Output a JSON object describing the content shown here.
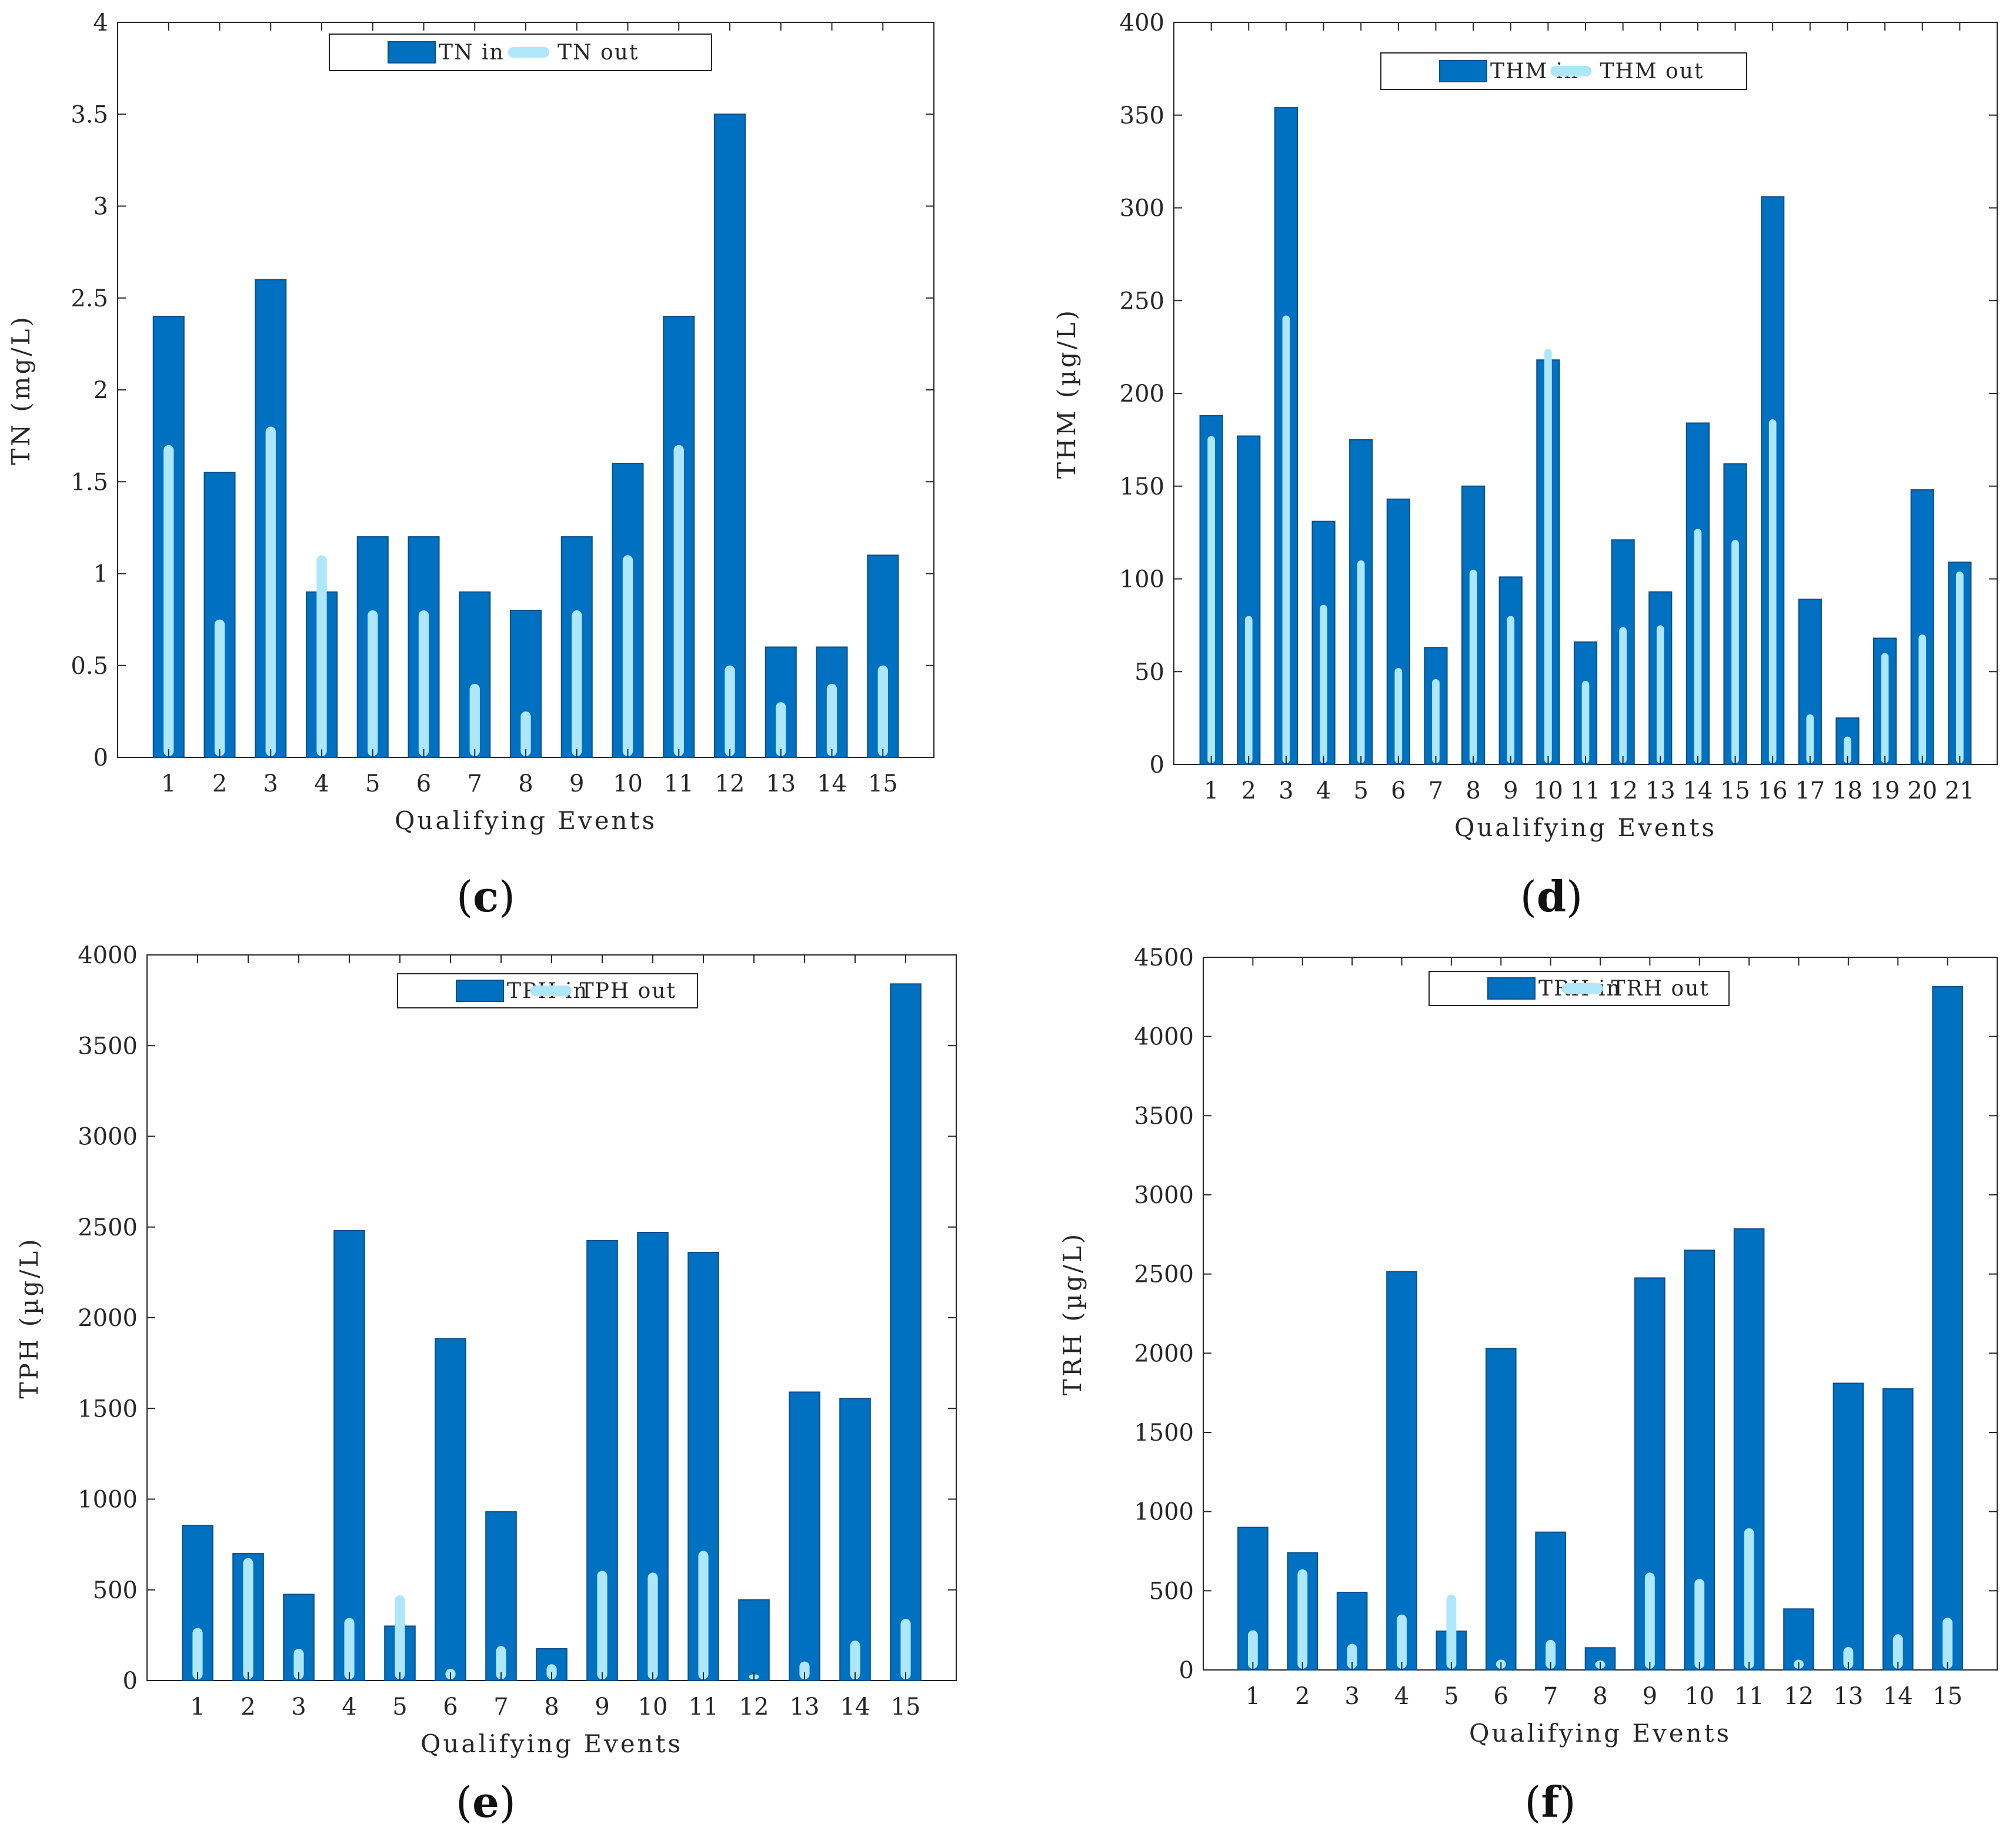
{
  "colors": {
    "in": "#0070c0",
    "in_edge": "#0b4f8a",
    "out": "#aee7fa",
    "axis": "#262626"
  },
  "chart_data": [
    {
      "type": "bar",
      "panel": "c",
      "panel_label": "c",
      "xlabel": "Qualifying Events",
      "ylabel": "TN (mg/L)",
      "ylim": [
        0,
        4
      ],
      "yticks": [
        0,
        0.5,
        1,
        1.5,
        2,
        2.5,
        3,
        3.5,
        4
      ],
      "ytick_labels": [
        "0",
        "0.5",
        "1",
        "1.5",
        "2",
        "2.5",
        "3",
        "3.5",
        "4"
      ],
      "categories": [
        "1",
        "2",
        "3",
        "4",
        "5",
        "6",
        "7",
        "8",
        "9",
        "10",
        "11",
        "12",
        "13",
        "14",
        "15"
      ],
      "legend_position": "top-center",
      "series": [
        {
          "name": "TN in",
          "values": [
            2.4,
            1.55,
            2.6,
            0.9,
            1.2,
            1.2,
            0.9,
            0.8,
            1.2,
            1.6,
            2.4,
            3.5,
            0.6,
            0.6,
            1.1
          ]
        },
        {
          "name": "TN out",
          "values": [
            1.7,
            0.75,
            1.8,
            1.1,
            0.8,
            0.8,
            0.4,
            0.25,
            0.8,
            1.1,
            1.7,
            0.5,
            0.3,
            0.4,
            0.5
          ]
        }
      ]
    },
    {
      "type": "bar",
      "panel": "d",
      "panel_label": "d",
      "xlabel": "Qualifying Events",
      "ylabel": "THM (µg/L)",
      "ylim": [
        0,
        400
      ],
      "yticks": [
        0,
        50,
        100,
        150,
        200,
        250,
        300,
        350,
        400
      ],
      "ytick_labels": [
        "0",
        "50",
        "100",
        "150",
        "200",
        "250",
        "300",
        "350",
        "400"
      ],
      "categories": [
        "1",
        "2",
        "3",
        "4",
        "5",
        "6",
        "7",
        "8",
        "9",
        "10",
        "11",
        "12",
        "13",
        "14",
        "15",
        "16",
        "17",
        "18",
        "19",
        "20",
        "21"
      ],
      "legend_position": "top-center",
      "series": [
        {
          "name": "THM in",
          "values": [
            188,
            177,
            354,
            131,
            175,
            143,
            63,
            150,
            101,
            218,
            66,
            121,
            93,
            184,
            162,
            306,
            89,
            25,
            68,
            148,
            109
          ]
        },
        {
          "name": "THM out",
          "values": [
            177,
            80,
            242,
            86,
            110,
            52,
            46,
            105,
            80,
            224,
            45,
            74,
            75,
            127,
            121,
            186,
            27,
            15,
            60,
            70,
            104
          ]
        }
      ]
    },
    {
      "type": "bar",
      "panel": "e",
      "panel_label": "e",
      "xlabel": "Qualifying Events",
      "ylabel": "TPH (µg/L)",
      "ylim": [
        0,
        4000
      ],
      "yticks": [
        0,
        500,
        1000,
        1500,
        2000,
        2500,
        3000,
        3500,
        4000
      ],
      "ytick_labels": [
        "0",
        "500",
        "1000",
        "1500",
        "2000",
        "2500",
        "3000",
        "3500",
        "4000"
      ],
      "categories": [
        "1",
        "2",
        "3",
        "4",
        "5",
        "6",
        "7",
        "8",
        "9",
        "10",
        "11",
        "12",
        "13",
        "14",
        "15"
      ],
      "legend_position": "top-center",
      "series": [
        {
          "name": "TPH in",
          "values": [
            855,
            700,
            475,
            2480,
            300,
            1885,
            930,
            175,
            2425,
            2470,
            2360,
            445,
            1590,
            1555,
            3840
          ]
        },
        {
          "name": "TPH out",
          "values": [
            290,
            675,
            175,
            345,
            470,
            65,
            190,
            90,
            605,
            595,
            715,
            35,
            105,
            220,
            340
          ]
        }
      ]
    },
    {
      "type": "bar",
      "panel": "f",
      "panel_label": "f",
      "xlabel": "Qualifying Events",
      "ylabel": "TRH (µg/L)",
      "ylim": [
        0,
        4500
      ],
      "yticks": [
        0,
        500,
        1000,
        1500,
        2000,
        2500,
        3000,
        3500,
        4000,
        4500
      ],
      "ytick_labels": [
        "0",
        "500",
        "1000",
        "1500",
        "2000",
        "2500",
        "3000",
        "3500",
        "4000",
        "4500"
      ],
      "categories": [
        "1",
        "2",
        "3",
        "4",
        "5",
        "6",
        "7",
        "8",
        "9",
        "10",
        "11",
        "12",
        "13",
        "14",
        "15"
      ],
      "legend_position": "top-center",
      "series": [
        {
          "name": "TRH in",
          "values": [
            900,
            740,
            490,
            2515,
            245,
            2030,
            870,
            140,
            2475,
            2650,
            2785,
            385,
            1810,
            1775,
            4315
          ]
        },
        {
          "name": "TRH out",
          "values": [
            250,
            635,
            165,
            350,
            475,
            65,
            190,
            60,
            615,
            575,
            895,
            65,
            145,
            225,
            330
          ]
        }
      ]
    }
  ]
}
